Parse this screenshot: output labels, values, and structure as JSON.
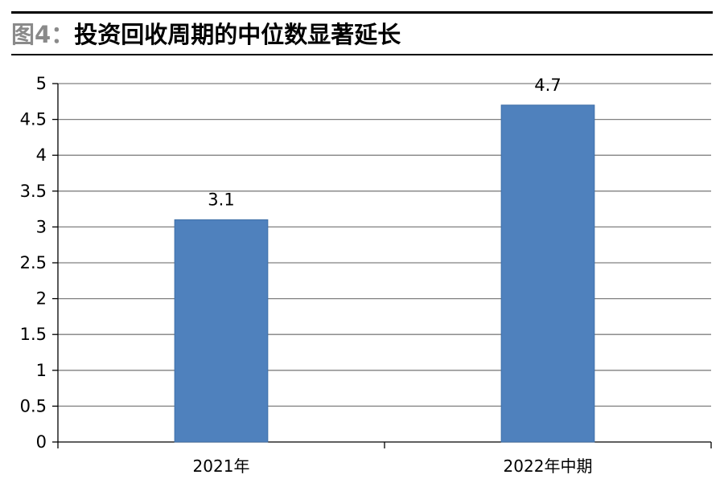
{
  "figure_label": "图4：",
  "title": "投资回收周期的中位数显著延长",
  "colors": {
    "bar": "#4f81bd",
    "bar_edge": "#3f6fa8",
    "grid": "#808080",
    "axis": "#000000",
    "figure_label": "#8a8a8a"
  },
  "chart_data": {
    "type": "bar",
    "categories": [
      "2021年",
      "2022年中期"
    ],
    "values": [
      3.1,
      4.7
    ],
    "data_labels": [
      "3.1",
      "4.7"
    ],
    "title": "",
    "xlabel": "",
    "ylabel": "",
    "ylim": [
      0,
      5
    ],
    "yticks": [
      "0",
      "0.5",
      "1",
      "1.5",
      "2",
      "2.5",
      "3",
      "3.5",
      "4",
      "4.5",
      "5"
    ],
    "grid": true,
    "legend": "none"
  }
}
